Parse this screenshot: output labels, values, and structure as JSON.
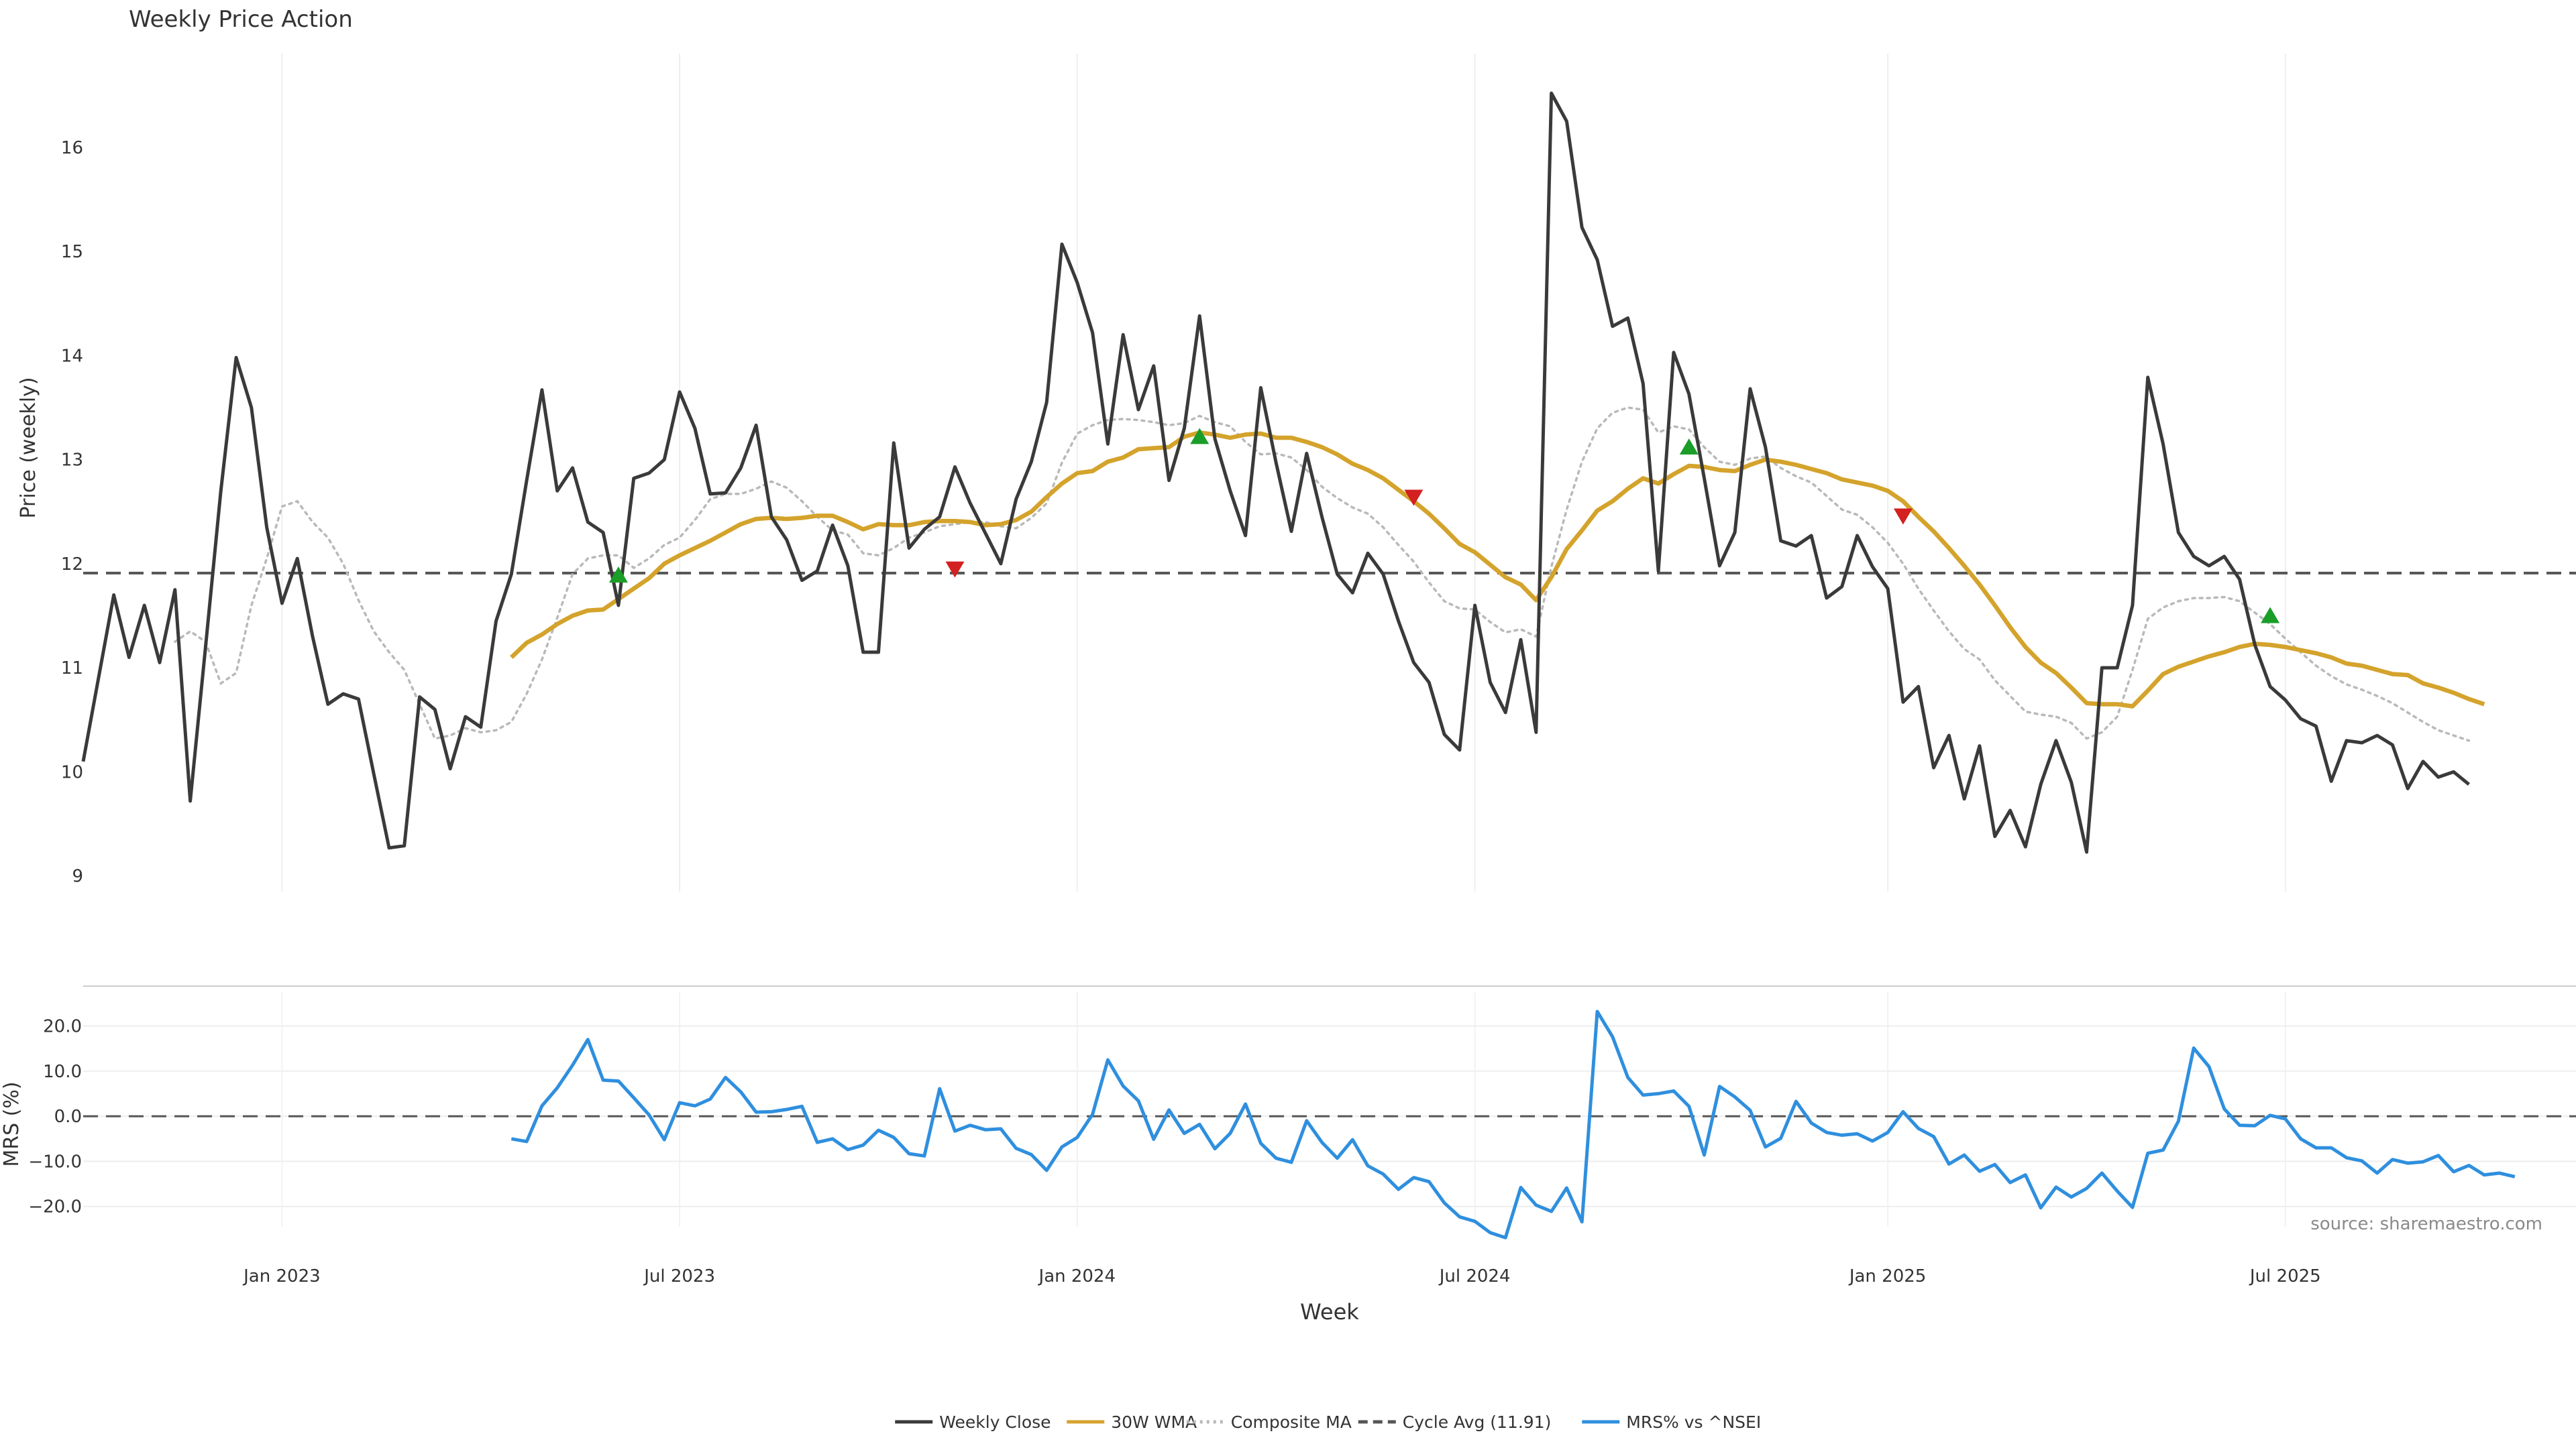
{
  "chart_data": {
    "type": "line",
    "title": "Weekly Price Action",
    "xlabel": "Week",
    "source_note": "source: sharemaestro.com",
    "grid": true,
    "legend_position": "bottom-center",
    "x_range": [
      "2022-10-03",
      "2025-11-17"
    ],
    "x_ticks": [
      {
        "date": "2023-01-02",
        "label": "Jan 2023"
      },
      {
        "date": "2023-07-03",
        "label": "Jul 2023"
      },
      {
        "date": "2024-01-01",
        "label": "Jan 2024"
      },
      {
        "date": "2024-07-01",
        "label": "Jul 2024"
      },
      {
        "date": "2025-01-06",
        "label": "Jan 2025"
      },
      {
        "date": "2025-07-07",
        "label": "Jul 2025"
      }
    ],
    "price_panel": {
      "ylabel": "Price (weekly)",
      "ylim": [
        8.85,
        16.9
      ],
      "y_ticks": [
        9,
        10,
        11,
        12,
        13,
        14,
        15,
        16
      ],
      "cycle_avg": 11.91,
      "series": [
        {
          "name": "Weekly Close",
          "color": "#3a3a3a",
          "style": "solid",
          "start": "2022-10-03",
          "values": [
            10.1,
            10.9,
            11.7,
            11.1,
            11.6,
            11.05,
            11.75,
            9.72,
            11.2,
            12.7,
            13.98,
            13.5,
            12.35,
            11.62,
            12.05,
            11.3,
            10.65,
            10.75,
            10.7,
            9.98,
            9.27,
            9.29,
            10.72,
            10.6,
            10.03,
            10.53,
            10.43,
            11.45,
            11.9,
            12.8,
            13.67,
            12.7,
            12.92,
            12.4,
            12.3,
            11.6,
            12.82,
            12.87,
            13.0,
            13.65,
            13.3,
            12.67,
            12.68,
            12.92,
            13.33,
            12.45,
            12.23,
            11.84,
            11.93,
            12.37,
            11.98,
            11.15,
            11.15,
            13.16,
            12.15,
            12.33,
            12.45,
            12.93,
            12.58,
            12.29,
            12.0,
            12.62,
            12.98,
            13.55,
            15.07,
            14.7,
            14.22,
            13.15,
            14.2,
            13.48,
            13.9,
            12.8,
            13.3,
            14.38,
            13.2,
            12.7,
            12.27,
            13.69,
            12.97,
            12.31,
            13.06,
            12.45,
            11.9,
            11.72,
            12.1,
            11.9,
            11.45,
            11.05,
            10.86,
            10.36,
            10.21,
            11.6,
            10.86,
            10.57,
            11.27,
            10.38,
            16.52,
            16.25,
            15.23,
            14.92,
            14.28,
            14.36,
            13.73,
            11.93,
            14.03,
            13.63,
            12.82,
            11.98,
            12.3,
            13.68,
            13.12,
            12.22,
            12.17,
            12.27,
            11.67,
            11.78,
            12.27,
            11.97,
            11.76,
            10.67,
            10.82,
            10.04,
            10.35,
            9.74,
            10.25,
            9.38,
            9.63,
            9.28,
            9.88,
            10.3,
            9.9,
            9.23,
            11.0,
            11.0,
            11.6,
            13.79,
            13.15,
            12.3,
            12.07,
            11.98,
            12.07,
            11.85,
            11.22,
            10.82,
            10.69,
            10.51,
            10.44,
            9.91,
            10.3,
            10.28,
            10.35,
            10.26,
            9.84,
            10.1,
            9.95,
            10.0,
            9.88
          ]
        },
        {
          "name": "30W WMA",
          "color": "#d4a32c",
          "style": "solid",
          "start": "2023-04-17",
          "values": [
            11.1,
            11.24,
            11.32,
            11.42,
            11.5,
            11.55,
            11.56,
            11.66,
            11.76,
            11.86,
            12.0,
            12.08,
            12.15,
            12.22,
            12.3,
            12.38,
            12.43,
            12.44,
            12.43,
            12.44,
            12.46,
            12.46,
            12.4,
            12.33,
            12.38,
            12.37,
            12.37,
            12.4,
            12.41,
            12.41,
            12.4,
            12.37,
            12.38,
            12.42,
            12.5,
            12.64,
            12.77,
            12.87,
            12.89,
            12.98,
            13.02,
            13.1,
            13.11,
            13.12,
            13.22,
            13.26,
            13.24,
            13.21,
            13.24,
            13.25,
            13.21,
            13.21,
            13.17,
            13.12,
            13.05,
            12.96,
            12.9,
            12.82,
            12.71,
            12.6,
            12.48,
            12.34,
            12.19,
            12.11,
            11.99,
            11.87,
            11.8,
            11.65,
            11.87,
            12.14,
            12.32,
            12.51,
            12.6,
            12.72,
            12.82,
            12.77,
            12.86,
            12.94,
            12.93,
            12.9,
            12.89,
            12.95,
            13.0,
            12.98,
            12.95,
            12.91,
            12.87,
            12.81,
            12.78,
            12.75,
            12.7,
            12.6,
            12.45,
            12.31,
            12.15,
            11.98,
            11.8,
            11.6,
            11.39,
            11.2,
            11.05,
            10.95,
            10.81,
            10.66,
            10.65,
            10.65,
            10.63,
            10.78,
            10.94,
            11.01,
            11.06,
            11.11,
            11.15,
            11.2,
            11.23,
            11.22,
            11.2,
            11.17,
            11.14,
            11.1,
            11.04,
            11.02,
            10.98,
            10.94,
            10.93,
            10.85,
            10.81,
            10.76,
            10.7,
            10.65
          ]
        },
        {
          "name": "Composite MA",
          "color": "#b9b9b9",
          "style": "dotted",
          "start": "2022-11-14",
          "values": [
            11.25,
            11.35,
            11.25,
            10.85,
            10.95,
            11.6,
            12.05,
            12.55,
            12.6,
            12.4,
            12.25,
            12.0,
            11.65,
            11.35,
            11.15,
            10.98,
            10.65,
            10.32,
            10.35,
            10.42,
            10.38,
            10.4,
            10.48,
            10.75,
            11.08,
            11.48,
            11.9,
            12.05,
            12.08,
            12.08,
            11.96,
            12.05,
            12.18,
            12.25,
            12.42,
            12.62,
            12.67,
            12.67,
            12.72,
            12.79,
            12.73,
            12.6,
            12.45,
            12.32,
            12.28,
            12.1,
            12.08,
            12.15,
            12.25,
            12.3,
            12.36,
            12.38,
            12.4,
            12.4,
            12.36,
            12.34,
            12.44,
            12.58,
            12.97,
            13.25,
            13.33,
            13.38,
            13.39,
            13.38,
            13.36,
            13.33,
            13.35,
            13.42,
            13.36,
            13.32,
            13.17,
            13.05,
            13.06,
            13.02,
            12.9,
            12.74,
            12.63,
            12.54,
            12.48,
            12.35,
            12.18,
            12.02,
            11.82,
            11.64,
            11.57,
            11.56,
            11.44,
            11.34,
            11.37,
            11.3,
            11.97,
            12.52,
            12.98,
            13.3,
            13.45,
            13.5,
            13.48,
            13.26,
            13.32,
            13.29,
            13.12,
            12.98,
            12.95,
            13.01,
            13.03,
            12.92,
            12.84,
            12.78,
            12.65,
            12.52,
            12.47,
            12.35,
            12.2,
            12.0,
            11.76,
            11.55,
            11.35,
            11.18,
            11.08,
            10.88,
            10.73,
            10.58,
            10.55,
            10.53,
            10.47,
            10.32,
            10.38,
            10.53,
            10.98,
            11.47,
            11.58,
            11.64,
            11.67,
            11.67,
            11.68,
            11.64,
            11.53,
            11.42,
            11.28,
            11.15,
            11.02,
            10.92,
            10.84,
            10.79,
            10.73,
            10.66,
            10.57,
            10.48,
            10.4,
            10.35,
            10.3
          ]
        }
      ],
      "buy_signals": [
        {
          "date": "2023-06-05",
          "value": 11.89
        },
        {
          "date": "2024-02-26",
          "value": 13.22
        },
        {
          "date": "2024-10-07",
          "value": 13.12
        },
        {
          "date": "2025-06-30",
          "value": 11.5
        }
      ],
      "sell_signals": [
        {
          "date": "2023-11-06",
          "value": 11.95
        },
        {
          "date": "2024-06-03",
          "value": 12.64
        },
        {
          "date": "2025-01-13",
          "value": 12.46
        }
      ]
    },
    "mrs_panel": {
      "ylabel": "MRS (%)",
      "ylim": [
        -24.5,
        27.5
      ],
      "y_ticks": [
        -20.0,
        -10.0,
        0.0,
        10.0,
        20.0
      ],
      "y_tick_labels": [
        "−20.0",
        "−10.0",
        "0.0",
        "10.0",
        "20.0"
      ],
      "zero_line": 0,
      "series": [
        {
          "name": "MRS% vs ^NSEI",
          "color": "#2f8fde",
          "style": "solid",
          "start": "2023-04-17",
          "values": [
            -5.0,
            -5.6,
            2.3,
            6.3,
            11.3,
            17.0,
            8.0,
            7.8,
            4.1,
            0.3,
            -5.2,
            3.0,
            2.3,
            3.8,
            8.6,
            5.4,
            0.9,
            1.0,
            1.5,
            2.2,
            -5.8,
            -5.0,
            -7.4,
            -6.4,
            -3.1,
            -4.7,
            -8.3,
            -8.8,
            6.1,
            -3.3,
            -2.0,
            -3.0,
            -2.8,
            -7.1,
            -8.5,
            -12.0,
            -6.8,
            -4.7,
            0.4,
            12.5,
            6.7,
            3.4,
            -5.1,
            1.4,
            -3.8,
            -1.8,
            -7.2,
            -3.8,
            2.7,
            -6.0,
            -9.3,
            -10.2,
            -1.0,
            -5.8,
            -9.3,
            -5.2,
            -11.0,
            -12.8,
            -16.2,
            -13.6,
            -14.5,
            -19.2,
            -22.3,
            -23.3,
            -25.8,
            -26.9,
            -15.8,
            -19.7,
            -21.1,
            -15.9,
            -23.4,
            23.2,
            17.6,
            8.6,
            4.7,
            5.0,
            5.6,
            2.2,
            -8.6,
            6.6,
            4.3,
            1.3,
            -6.8,
            -4.9,
            3.3,
            -1.5,
            -3.6,
            -4.2,
            -3.9,
            -5.5,
            -3.6,
            1.0,
            -2.7,
            -4.5,
            -10.6,
            -8.6,
            -12.2,
            -10.7,
            -14.7,
            -13.0,
            -20.3,
            -15.7,
            -17.9,
            -16.0,
            -12.6,
            -16.6,
            -20.2,
            -8.2,
            -7.5,
            -1.1,
            15.1,
            11.0,
            1.6,
            -2.0,
            -2.1,
            0.2,
            -0.6,
            -5.0,
            -7.0,
            -7.0,
            -9.2,
            -9.9,
            -12.6,
            -9.6,
            -10.4,
            -10.1,
            -8.7,
            -12.3,
            -10.9,
            -13.0,
            -12.6,
            -13.4
          ]
        }
      ]
    },
    "legend": [
      {
        "label": "Weekly Close",
        "color": "#3a3a3a",
        "style": "solid"
      },
      {
        "label": "30W WMA",
        "color": "#d4a32c",
        "style": "solid"
      },
      {
        "label": "Composite MA",
        "color": "#b9b9b9",
        "style": "dotted"
      },
      {
        "label": "Cycle Avg (11.91)",
        "color": "#555555",
        "style": "dashed"
      },
      {
        "label": "MRS% vs ^NSEI",
        "color": "#2f8fde",
        "style": "solid"
      }
    ]
  }
}
